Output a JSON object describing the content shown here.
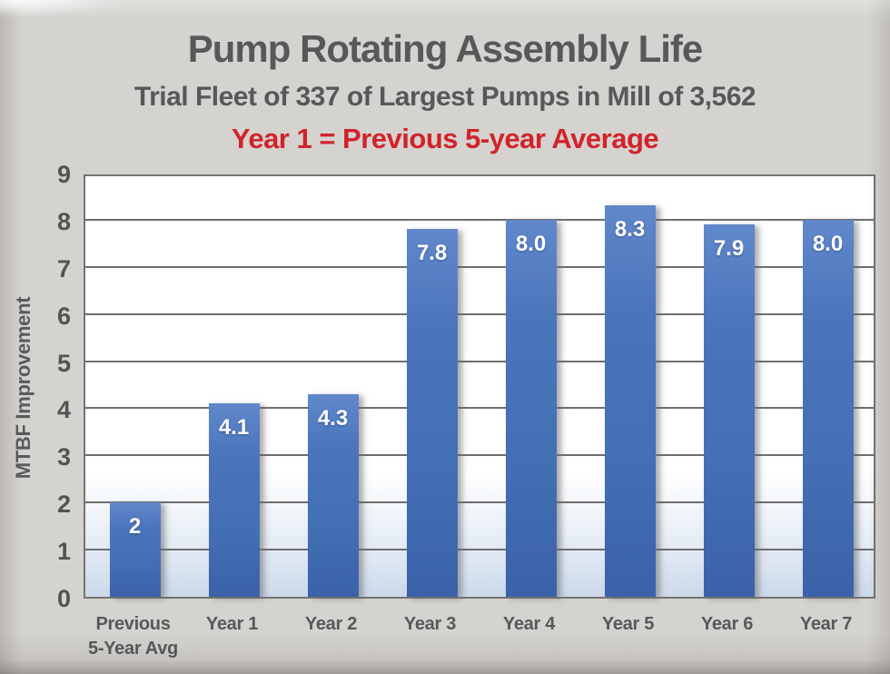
{
  "header": {
    "title": "Pump Rotating Assembly Life",
    "subtitle": "Trial Fleet of 337 of Largest Pumps in Mill of 3,562",
    "note": "Year 1 = Previous 5-year Average"
  },
  "colors": {
    "background": "#d5d3d0",
    "title_gray": "#58585a",
    "note_red": "#d2232a",
    "bar_top": "#6088cb",
    "bar_bottom": "#3a62a8"
  },
  "chart_data": {
    "type": "bar",
    "title": "Pump Rotating Assembly Life",
    "subtitle": "Trial Fleet of 337 of Largest Pumps in Mill of 3,562",
    "annotation": "Year 1 = Previous 5-year Average",
    "categories": [
      "Previous\n5-Year Avg",
      "Year 1",
      "Year 2",
      "Year 3",
      "Year 4",
      "Year 5",
      "Year 6",
      "Year 7"
    ],
    "values": [
      2,
      4.1,
      4.3,
      7.8,
      8.0,
      8.3,
      7.9,
      8.0
    ],
    "bar_labels": [
      "2",
      "4.1",
      "4.3",
      "7.8",
      "8.0",
      "8.3",
      "7.9",
      "8.0"
    ],
    "xlabel": "",
    "ylabel": "MTBF Improvement",
    "ylim": [
      0,
      9
    ],
    "ytick_step": 1,
    "yticks": [
      0,
      1,
      2,
      3,
      4,
      5,
      6,
      7,
      8,
      9
    ],
    "grid": true,
    "legend": false
  }
}
